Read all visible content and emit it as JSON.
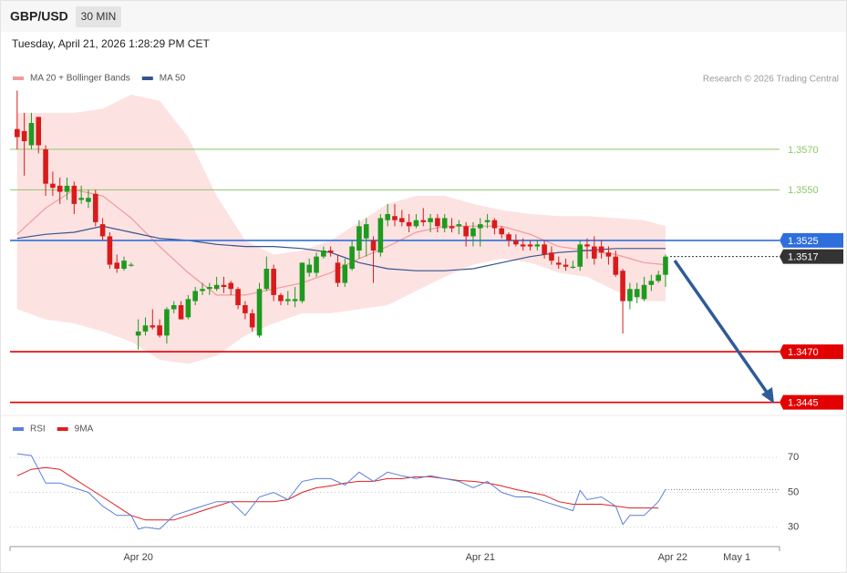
{
  "header": {
    "symbol": "GBP/USD",
    "timeframe": "30 MIN",
    "timestamp": "Tuesday, April 21, 2026 1:28:29 PM CET",
    "credit": "Research © 2026 Trading Central"
  },
  "chart_data": [
    {
      "type": "candlestick",
      "up_color": "#1e9a1e",
      "down_color": "#d81b1b",
      "band_color": "#fde2e2",
      "xlim": [
        -1,
        107
      ],
      "ylim": [
        1.3439,
        1.3601
      ],
      "x": [
        0,
        1,
        2,
        3,
        4,
        5,
        6,
        7,
        8,
        9,
        10,
        11,
        12,
        13,
        14,
        15,
        16,
        17,
        18,
        19,
        20,
        21,
        22,
        23,
        24,
        25,
        26,
        27,
        28,
        29,
        30,
        31,
        32,
        33,
        34,
        35,
        36,
        37,
        38,
        39,
        40,
        41,
        42,
        43,
        44,
        45,
        46,
        47,
        48,
        49,
        50,
        51,
        52,
        53,
        54,
        55,
        56,
        57,
        58,
        59,
        60,
        61,
        62,
        63,
        64,
        65,
        66,
        67,
        68,
        69,
        70,
        71,
        72,
        73,
        74,
        75,
        76,
        77,
        78,
        79,
        80,
        81,
        82,
        83,
        84,
        85,
        86,
        87,
        88,
        89,
        90,
        91
      ],
      "open": [
        1.358,
        1.3579,
        1.3572,
        1.3586,
        1.357,
        1.3553,
        1.3552,
        1.3549,
        1.3552,
        1.3545,
        1.3544,
        1.3548,
        1.3533,
        1.3527,
        1.3514,
        1.3511,
        1.3513,
        1.3478,
        1.348,
        1.3483,
        1.3483,
        1.3478,
        1.3491,
        1.3493,
        1.3487,
        1.3495,
        1.35,
        1.3501,
        1.3501,
        1.3503,
        1.3504,
        1.3501,
        1.3493,
        1.3489,
        1.3478,
        1.3501,
        1.3511,
        1.3498,
        1.3495,
        1.3495,
        1.3495,
        1.3509,
        1.3509,
        1.3517,
        1.352,
        1.3514,
        1.3504,
        1.3511,
        1.352,
        1.3526,
        1.3525,
        1.3519,
        1.3535,
        1.3537,
        1.3536,
        1.3534,
        1.3532,
        1.3535,
        1.3534,
        1.3536,
        1.3531,
        1.3532,
        1.3532,
        1.3532,
        1.3527,
        1.3531,
        1.3534,
        1.3535,
        1.3531,
        1.3528,
        1.3525,
        1.3523,
        1.3523,
        1.3522,
        1.3523,
        1.3519,
        1.3514,
        1.3513,
        1.3512,
        1.3512,
        1.3523,
        1.3522,
        1.3522,
        1.3519,
        1.3517,
        1.351,
        1.3495,
        1.3497,
        1.3496,
        1.3503,
        1.3505,
        1.3508
      ],
      "high": [
        1.3599,
        1.3588,
        1.3588,
        1.3586,
        1.3572,
        1.3559,
        1.3556,
        1.3556,
        1.3554,
        1.3552,
        1.355,
        1.355,
        1.3536,
        1.3529,
        1.3518,
        1.3517,
        1.3514,
        1.3486,
        1.3487,
        1.3491,
        1.3486,
        1.3492,
        1.3495,
        1.3495,
        1.3498,
        1.3502,
        1.3504,
        1.3504,
        1.3507,
        1.3507,
        1.3505,
        1.3502,
        1.3495,
        1.3491,
        1.3504,
        1.3517,
        1.3513,
        1.3499,
        1.35,
        1.3502,
        1.3514,
        1.3516,
        1.3519,
        1.3522,
        1.3522,
        1.3518,
        1.3516,
        1.3525,
        1.3535,
        1.3536,
        1.3527,
        1.3538,
        1.3543,
        1.3543,
        1.354,
        1.3538,
        1.3538,
        1.3541,
        1.3538,
        1.3538,
        1.3538,
        1.3536,
        1.3535,
        1.3534,
        1.3534,
        1.3536,
        1.3538,
        1.3536,
        1.3532,
        1.3529,
        1.3528,
        1.3526,
        1.3525,
        1.3525,
        1.3525,
        1.3522,
        1.3517,
        1.3516,
        1.3515,
        1.3525,
        1.3526,
        1.3527,
        1.3525,
        1.3522,
        1.352,
        1.3511,
        1.3504,
        1.3504,
        1.3507,
        1.3508,
        1.351,
        1.3518
      ],
      "low": [
        1.357,
        1.3557,
        1.357,
        1.3568,
        1.3547,
        1.3547,
        1.3543,
        1.3545,
        1.3538,
        1.3543,
        1.3541,
        1.3532,
        1.3525,
        1.3511,
        1.3509,
        1.351,
        1.3512,
        1.3471,
        1.3478,
        1.3481,
        1.3477,
        1.3474,
        1.3489,
        1.3486,
        1.3486,
        1.3493,
        1.3498,
        1.3498,
        1.35,
        1.3499,
        1.3498,
        1.3491,
        1.3486,
        1.348,
        1.3477,
        1.35,
        1.3495,
        1.3493,
        1.3493,
        1.3492,
        1.3494,
        1.3507,
        1.3507,
        1.3516,
        1.3517,
        1.3502,
        1.3502,
        1.351,
        1.3516,
        1.3517,
        1.3504,
        1.3517,
        1.3532,
        1.3532,
        1.3532,
        1.3529,
        1.3531,
        1.3532,
        1.3529,
        1.3529,
        1.3529,
        1.3529,
        1.3528,
        1.3522,
        1.3522,
        1.3522,
        1.3531,
        1.3528,
        1.3526,
        1.3522,
        1.3522,
        1.352,
        1.352,
        1.352,
        1.3516,
        1.3513,
        1.3511,
        1.351,
        1.3511,
        1.351,
        1.3516,
        1.3513,
        1.3516,
        1.3513,
        1.3507,
        1.3479,
        1.3491,
        1.3494,
        1.3495,
        1.35,
        1.3504,
        1.3502
      ],
      "close": [
        1.3576,
        1.3574,
        1.3583,
        1.3572,
        1.3553,
        1.3551,
        1.3549,
        1.3552,
        1.3543,
        1.3546,
        1.3546,
        1.3534,
        1.3527,
        1.3513,
        1.3511,
        1.3515,
        1.3513,
        1.348,
        1.3483,
        1.3482,
        1.3478,
        1.3491,
        1.3493,
        1.3486,
        1.3496,
        1.35,
        1.3501,
        1.3502,
        1.3503,
        1.3502,
        1.3501,
        1.3493,
        1.3489,
        1.3482,
        1.3501,
        1.3511,
        1.3498,
        1.3495,
        1.3496,
        1.3496,
        1.3514,
        1.3513,
        1.3517,
        1.352,
        1.3519,
        1.3504,
        1.3513,
        1.3522,
        1.3532,
        1.3533,
        1.352,
        1.3536,
        1.3538,
        1.3535,
        1.3534,
        1.3532,
        1.3535,
        1.3534,
        1.3536,
        1.3532,
        1.3536,
        1.3531,
        1.3533,
        1.3527,
        1.3531,
        1.3533,
        1.3535,
        1.3531,
        1.3528,
        1.3525,
        1.3523,
        1.3522,
        1.3522,
        1.3523,
        1.3518,
        1.3515,
        1.3513,
        1.3512,
        1.3512,
        1.3523,
        1.3522,
        1.3516,
        1.3519,
        1.3517,
        1.3508,
        1.3495,
        1.3501,
        1.3501,
        1.3503,
        1.3505,
        1.3508,
        1.3517
      ],
      "series": [
        {
          "name": "MA 20 + Bollinger Bands",
          "color": "#f19a9a",
          "x": [
            0,
            4,
            8,
            12,
            16,
            20,
            24,
            28,
            32,
            36,
            40,
            44,
            48,
            52,
            56,
            60,
            64,
            68,
            72,
            76,
            80,
            84,
            88,
            91
          ],
          "values": [
            1.3528,
            1.3541,
            1.355,
            1.3547,
            1.3536,
            1.3522,
            1.3509,
            1.3498,
            1.3498,
            1.3501,
            1.3504,
            1.3509,
            1.3516,
            1.3522,
            1.3529,
            1.3532,
            1.3532,
            1.3532,
            1.3528,
            1.3522,
            1.352,
            1.3518,
            1.3514,
            1.3513
          ],
          "upper": [
            1.3588,
            1.3588,
            1.3588,
            1.359,
            1.3597,
            1.3594,
            1.3576,
            1.3547,
            1.3525,
            1.3518,
            1.352,
            1.3525,
            1.3534,
            1.3543,
            1.3547,
            1.3547,
            1.3543,
            1.354,
            1.3538,
            1.3537,
            1.3537,
            1.3536,
            1.3535,
            1.3532
          ],
          "lower": [
            1.3491,
            1.3486,
            1.3484,
            1.348,
            1.3475,
            1.3466,
            1.3464,
            1.3468,
            1.3478,
            1.3484,
            1.3489,
            1.3489,
            1.3491,
            1.3493,
            1.35,
            1.3507,
            1.3513,
            1.3516,
            1.3514,
            1.3509,
            1.3507,
            1.35,
            1.3495,
            1.3495
          ]
        },
        {
          "name": "MA 50",
          "color": "#34558f",
          "x": [
            0,
            4,
            8,
            12,
            16,
            20,
            24,
            28,
            32,
            36,
            40,
            44,
            48,
            52,
            56,
            60,
            64,
            68,
            72,
            76,
            80,
            84,
            88,
            91
          ],
          "values": [
            1.3526,
            1.3528,
            1.3529,
            1.3532,
            1.3529,
            1.3526,
            1.3525,
            1.3523,
            1.3522,
            1.3522,
            1.3521,
            1.3519,
            1.3514,
            1.3511,
            1.351,
            1.351,
            1.3511,
            1.3514,
            1.3517,
            1.3519,
            1.352,
            1.3521,
            1.3521,
            1.3521
          ]
        }
      ],
      "levels": [
        {
          "value": 1.357,
          "label": "1.3570",
          "color": "#8cc866",
          "filled": false,
          "dashed": false
        },
        {
          "value": 1.355,
          "label": "1.3550",
          "color": "#8cc866",
          "filled": false,
          "dashed": false
        },
        {
          "value": 1.3525,
          "label": "1.3525",
          "color": "#2f6fdc",
          "filled": true,
          "dashed": false
        },
        {
          "value": 1.3517,
          "label": "1.3517",
          "color": "#333333",
          "filled": true,
          "dashed": true
        },
        {
          "value": 1.347,
          "label": "1.3470",
          "color": "#e30000",
          "filled": true,
          "dashed": false
        },
        {
          "value": 1.3445,
          "label": "1.3445",
          "color": "#e30000",
          "filled": true,
          "dashed": false
        }
      ]
    },
    {
      "type": "line",
      "xlim": [
        -1,
        107
      ],
      "ylim": [
        20,
        92
      ],
      "yticks": [
        30,
        50,
        70
      ],
      "grid": true,
      "xticks": [
        {
          "value": 17,
          "label": "Apr 20"
        },
        {
          "value": 65,
          "label": "Apr 21"
        },
        {
          "value": 92,
          "label": "Apr 22"
        },
        {
          "value": 101,
          "label": "May 1"
        }
      ],
      "series": [
        {
          "name": "RSI",
          "color": "#5b7fdc",
          "x": [
            0,
            2,
            4,
            6,
            8,
            10,
            12,
            14,
            16,
            17,
            18,
            20,
            22,
            24,
            26,
            28,
            30,
            32,
            34,
            36,
            38,
            40,
            42,
            44,
            46,
            48,
            50,
            52,
            54,
            56,
            58,
            60,
            62,
            64,
            66,
            68,
            70,
            72,
            74,
            76,
            78,
            79,
            80,
            82,
            84,
            85,
            86,
            88,
            90,
            91
          ],
          "values": [
            72.1,
            71.1,
            55.3,
            55.3,
            52.6,
            50,
            42.1,
            36.8,
            36.8,
            28.9,
            30,
            28.9,
            36.8,
            39.5,
            42.1,
            44.7,
            44.7,
            36.8,
            47.4,
            50,
            45.8,
            56.3,
            57.9,
            57.9,
            54.2,
            61.6,
            56.3,
            61.6,
            59.5,
            57.9,
            59.5,
            57.9,
            56.3,
            52.6,
            56.3,
            50,
            47.4,
            47.4,
            44.7,
            42.1,
            39.5,
            51.1,
            45.8,
            47.4,
            42.1,
            31.6,
            36.8,
            36.8,
            44.7,
            51.6
          ]
        },
        {
          "name": "9MA",
          "color": "#e01e1e",
          "x": [
            0,
            2,
            4,
            6,
            8,
            10,
            12,
            14,
            16,
            18,
            20,
            22,
            24,
            26,
            28,
            30,
            32,
            34,
            36,
            38,
            40,
            42,
            44,
            46,
            48,
            50,
            52,
            54,
            56,
            58,
            60,
            62,
            64,
            66,
            68,
            70,
            72,
            74,
            76,
            78,
            80,
            82,
            84,
            86,
            88,
            90
          ],
          "values": [
            59.5,
            63.2,
            64.2,
            63.2,
            57.9,
            52.6,
            47.4,
            42.1,
            36.8,
            34.2,
            34.2,
            34.2,
            36.8,
            39.5,
            42.1,
            44.7,
            44.7,
            44.7,
            44.7,
            45.8,
            50,
            52.6,
            53.7,
            55.3,
            56.3,
            56.3,
            57.9,
            57.9,
            58.9,
            58.9,
            57.9,
            56.8,
            56.3,
            55.3,
            53.7,
            51.6,
            50,
            48.4,
            44.7,
            43.2,
            43.2,
            43.2,
            42.1,
            41.1,
            41.1,
            41.1
          ]
        }
      ]
    }
  ]
}
